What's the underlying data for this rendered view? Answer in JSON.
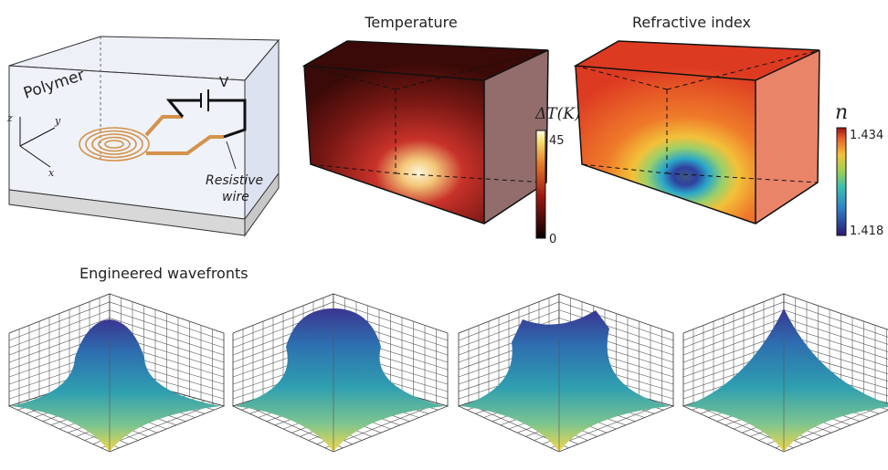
{
  "setup": {
    "material": "Polymer",
    "voltage": "V",
    "axis_z": "z",
    "axis_y": "y",
    "axis_x": "x",
    "wire_label": [
      "Resistive",
      "wire"
    ]
  },
  "temperature": {
    "title": "Temperature",
    "colorbar_label": "ΔT(K)",
    "max": 45,
    "min": 0
  },
  "refractive": {
    "title": "Refractive index",
    "colorbar_label": "n",
    "max": 1.434,
    "min": 1.418
  },
  "wavefronts": {
    "title": "Engineered wavefronts"
  }
}
